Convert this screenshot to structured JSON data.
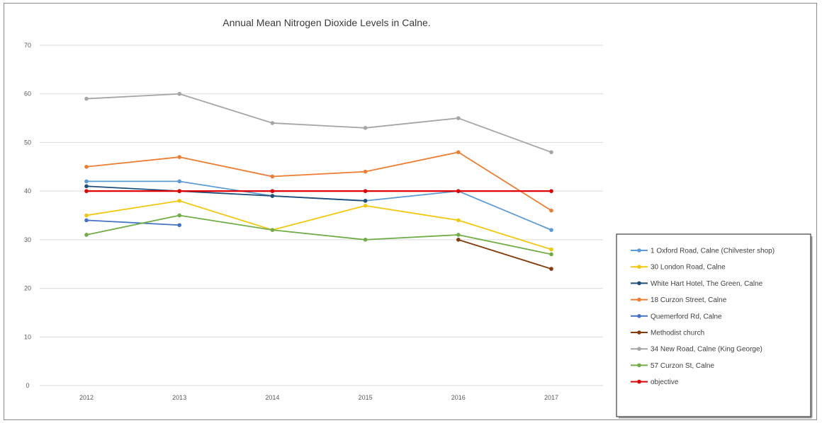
{
  "chart_data": {
    "type": "line",
    "title": "Annual Mean Nitrogen Dioxide Levels in Calne.",
    "x": [
      "2012",
      "2013",
      "2014",
      "2015",
      "2016",
      "2017"
    ],
    "ylim": [
      0,
      70
    ],
    "yticks": [
      0,
      10,
      20,
      30,
      40,
      50,
      60,
      70
    ],
    "grid": true,
    "legend_position": "right",
    "series": [
      {
        "name": "1 Oxford Road, Calne (Chilvester shop)",
        "color": "#5b9bd5",
        "values": [
          42,
          42,
          39,
          38,
          40,
          32
        ]
      },
      {
        "name": "30 London Road, Calne",
        "color": "#f2c80f",
        "values": [
          35,
          38,
          32,
          37,
          34,
          28
        ]
      },
      {
        "name": "White Hart Hotel, The Green, Calne",
        "color": "#1f4e79",
        "values": [
          41,
          40,
          39,
          38,
          null,
          null
        ]
      },
      {
        "name": "18 Curzon Street, Calne",
        "color": "#ed7d31",
        "values": [
          45,
          47,
          43,
          44,
          48,
          36
        ]
      },
      {
        "name": "Quemerford Rd, Calne",
        "color": "#4472c4",
        "values": [
          34,
          33,
          null,
          null,
          null,
          null
        ]
      },
      {
        "name": "Methodist church",
        "color": "#843c0c",
        "values": [
          null,
          null,
          null,
          null,
          30,
          24
        ]
      },
      {
        "name": "34 New Road, Calne (King George)",
        "color": "#a5a5a5",
        "values": [
          59,
          60,
          54,
          53,
          55,
          48
        ]
      },
      {
        "name": "57 Curzon St, Calne",
        "color": "#70ad47",
        "values": [
          31,
          35,
          32,
          30,
          31,
          27
        ]
      },
      {
        "name": "objective",
        "color": "#e00000",
        "values": [
          40,
          40,
          40,
          40,
          40,
          40
        ]
      }
    ]
  }
}
